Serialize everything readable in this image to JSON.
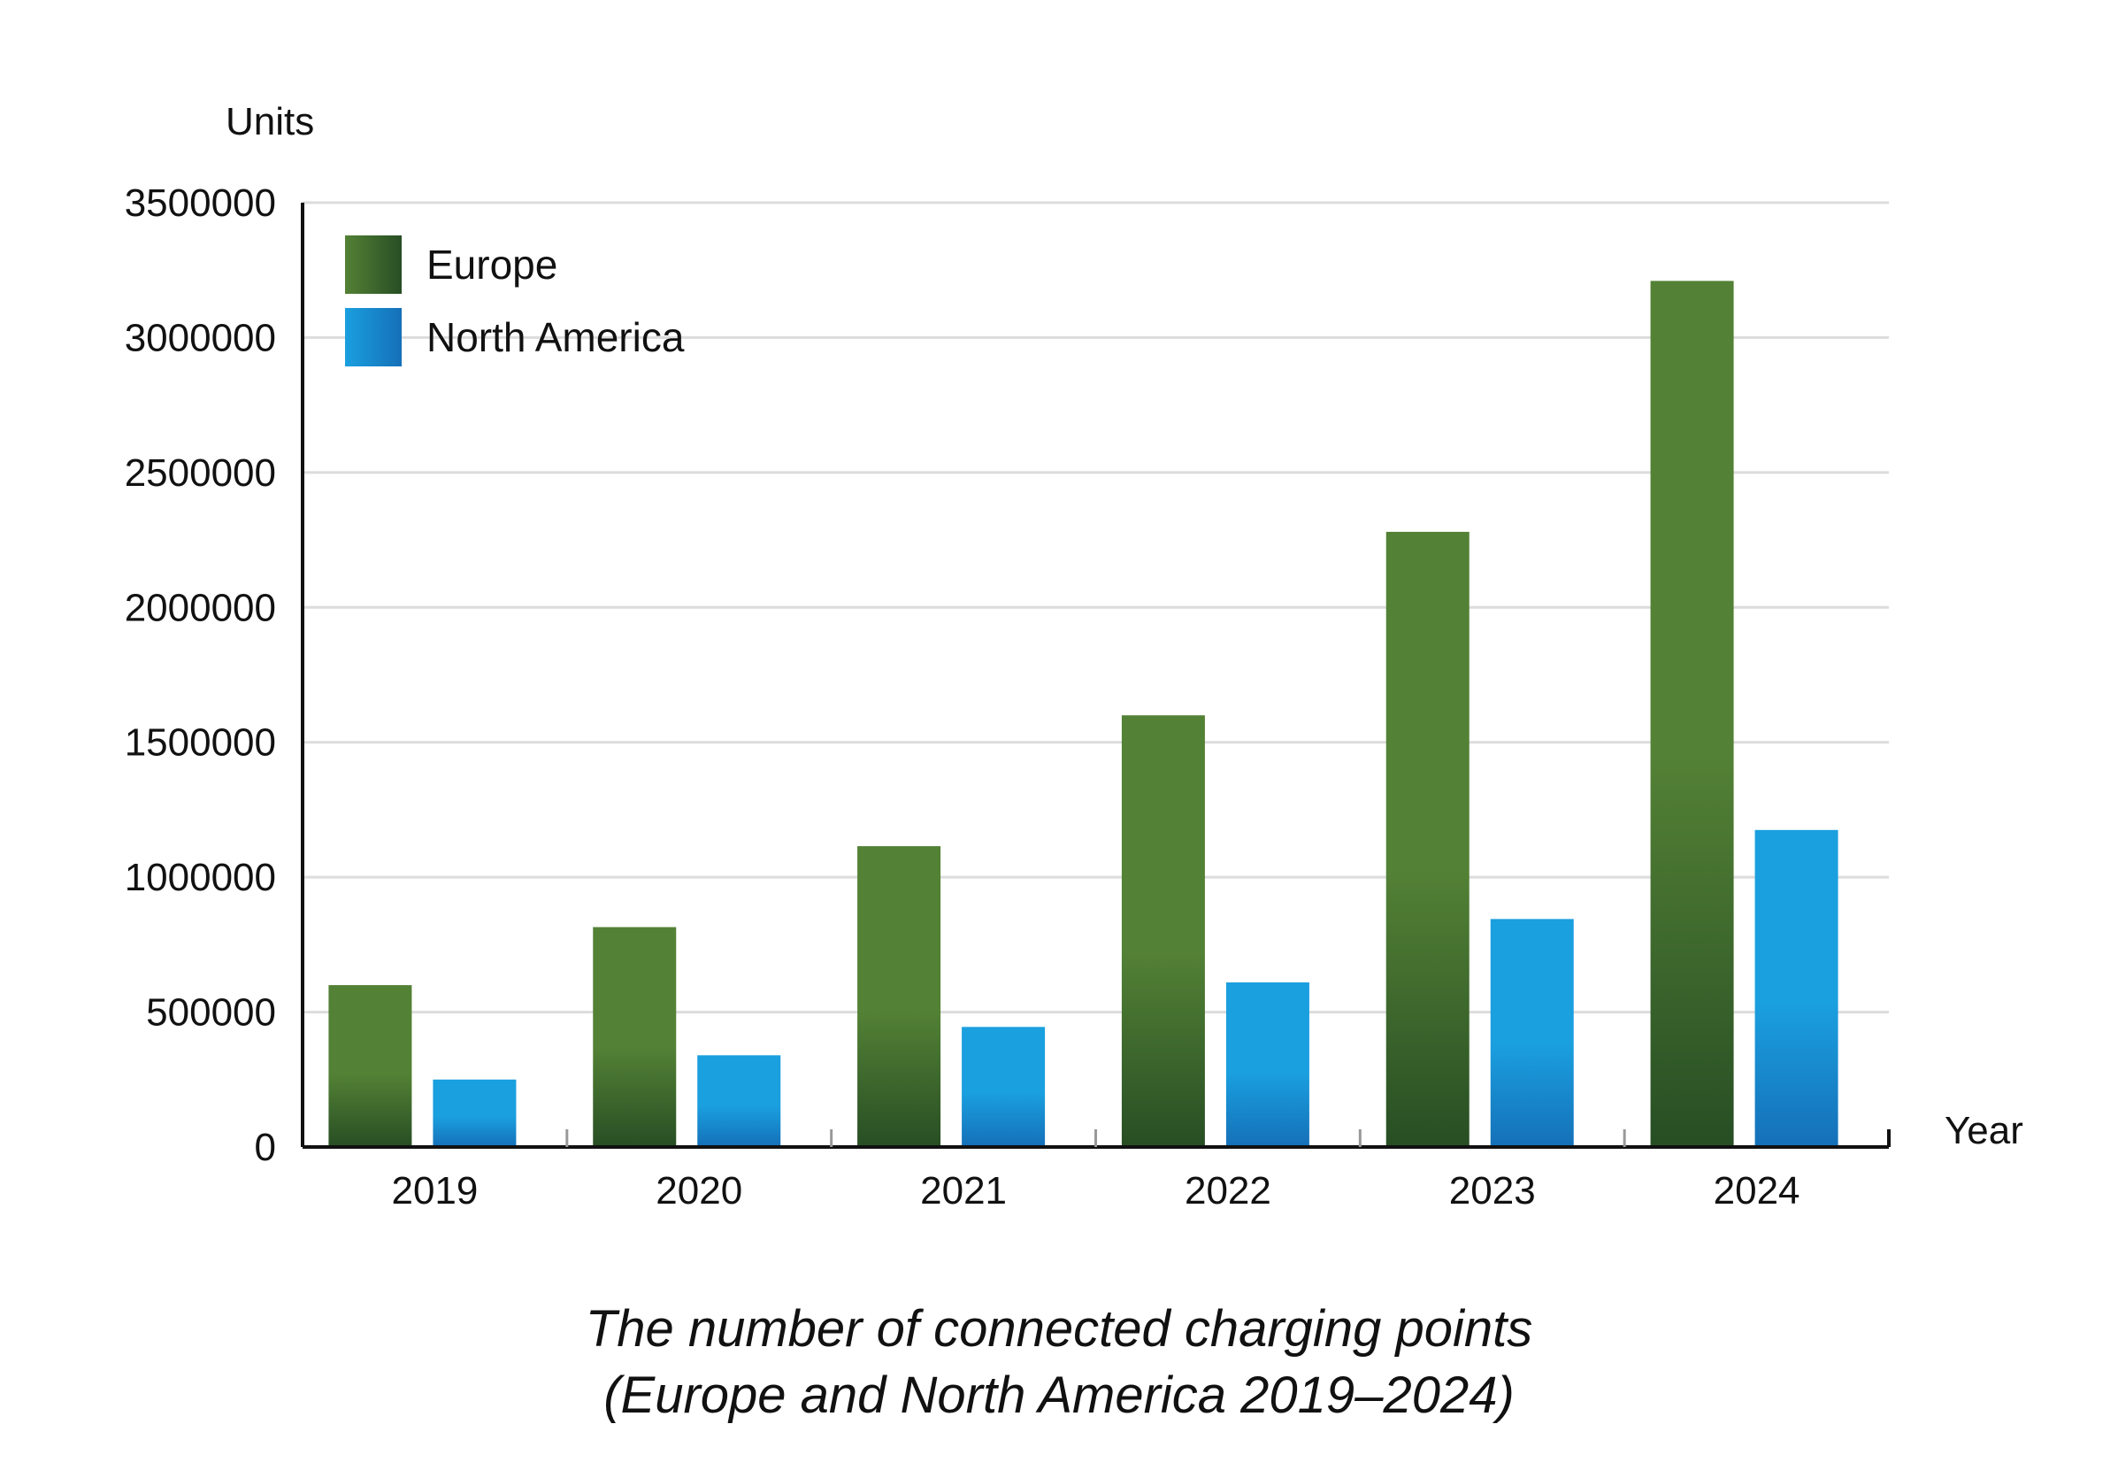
{
  "chart_data": {
    "type": "bar",
    "title": "The number of connected charging points",
    "subtitle": "(Europe and North America 2019–2024)",
    "xlabel": "Year",
    "ylabel": "Units",
    "categories": [
      "2019",
      "2020",
      "2021",
      "2022",
      "2023",
      "2024"
    ],
    "series": [
      {
        "name": "Europe",
        "values": [
          600000,
          815000,
          1115000,
          1600000,
          2280000,
          3210000
        ],
        "color": "#538135",
        "color_dark": "#274e24"
      },
      {
        "name": "North America",
        "values": [
          250000,
          340000,
          445000,
          610000,
          845000,
          1175000
        ],
        "color": "#1a9fdf",
        "color_dark": "#1570b8"
      }
    ],
    "ylim": [
      0,
      3500000
    ],
    "yticks": [
      "0",
      "500000",
      "1000000",
      "1500000",
      "2000000",
      "2500000",
      "3000000",
      "3500000"
    ],
    "grid": true,
    "legend_position": "top-left"
  }
}
